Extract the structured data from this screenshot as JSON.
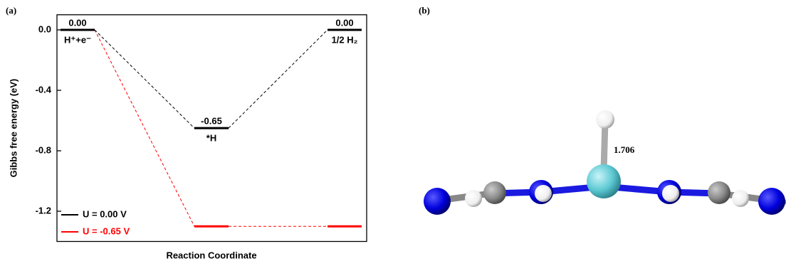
{
  "panels": {
    "a": "(a)",
    "b": "(b)"
  },
  "structure": {
    "annotation": "1.706"
  },
  "chart_data": {
    "type": "energy-levels",
    "xlabel": "Reaction Coordinate",
    "ylabel": "Gibbs free energy (eV)",
    "categories": [
      "H⁺+e⁻",
      "*H",
      "1/2 H₂"
    ],
    "series": [
      {
        "name": "U = 0.00 V",
        "color": "#000000",
        "values": [
          0,
          -0.65,
          0
        ],
        "value_labels": [
          "0.00",
          "-0.65",
          "0.00"
        ]
      },
      {
        "name": "U = -0.65 V",
        "color": "#ff0000",
        "values": [
          0,
          -1.3,
          -1.3
        ]
      }
    ],
    "ylim": [
      -1.4,
      0.1
    ],
    "yticks": [
      {
        "value": 0,
        "label": "0.0"
      },
      {
        "value": -0.4,
        "label": "-0.4"
      },
      {
        "value": -0.8,
        "label": "-0.8"
      },
      {
        "value": -1.2,
        "label": "-1.2"
      }
    ],
    "legend": "lower left"
  }
}
